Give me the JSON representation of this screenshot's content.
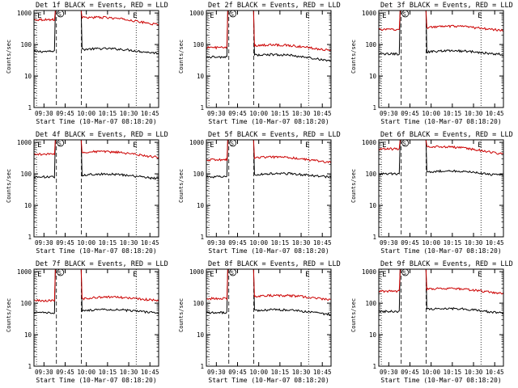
{
  "title_suffix": "BLACK = Events, RED = LLD",
  "xlabel": "Start Time (10-Mar-07 08:18:20)",
  "ylabel": "Counts/sec",
  "y_ticks": [
    "1",
    "10",
    "100",
    "1000"
  ],
  "marker_e": "E",
  "marker_s": "S",
  "colors": {
    "events": "#000000",
    "lld": "#cc0000"
  },
  "chart_data": [
    {
      "type": "line",
      "title": "Det 1f",
      "x_ticks": [
        "09:30",
        "09:45",
        "10:00",
        "10:15",
        "10:30",
        "10:45"
      ],
      "ylim": [
        1,
        1200
      ],
      "series": [
        {
          "name": "Events",
          "start": 60,
          "end": 60
        },
        {
          "name": "LLD",
          "start": 620,
          "end": 480
        }
      ]
    },
    {
      "type": "line",
      "title": "Det 2f",
      "x_ticks": [
        "09:30",
        "09:45",
        "10:00",
        "10:15",
        "10:30",
        "10:45"
      ],
      "ylim": [
        1,
        1200
      ],
      "series": [
        {
          "name": "Events",
          "start": 40,
          "end": 35
        },
        {
          "name": "LLD",
          "start": 80,
          "end": 75
        }
      ]
    },
    {
      "type": "line",
      "title": "Det 3f",
      "x_ticks": [
        "09:30",
        "09:45",
        "10:00",
        "10:15",
        "10:30",
        "10:45"
      ],
      "ylim": [
        1,
        1200
      ],
      "series": [
        {
          "name": "Events",
          "start": 50,
          "end": 55
        },
        {
          "name": "LLD",
          "start": 300,
          "end": 320
        }
      ]
    },
    {
      "type": "line",
      "title": "Det 4f",
      "x_ticks": [
        "09:30",
        "09:45",
        "10:00",
        "10:15",
        "10:30",
        "10:45"
      ],
      "ylim": [
        1,
        1200
      ],
      "series": [
        {
          "name": "Events",
          "start": 80,
          "end": 80
        },
        {
          "name": "LLD",
          "start": 420,
          "end": 380
        }
      ]
    },
    {
      "type": "line",
      "title": "Det 5f",
      "x_ticks": [
        "09:30",
        "09:45",
        "10:00",
        "10:15",
        "10:30",
        "10:45"
      ],
      "ylim": [
        1,
        1200
      ],
      "series": [
        {
          "name": "Events",
          "start": 80,
          "end": 90
        },
        {
          "name": "LLD",
          "start": 280,
          "end": 260
        }
      ]
    },
    {
      "type": "line",
      "title": "Det 6f",
      "x_ticks": [
        "09:30",
        "09:45",
        "10:00",
        "10:15",
        "10:30",
        "10:45"
      ],
      "ylim": [
        1,
        1200
      ],
      "series": [
        {
          "name": "Events",
          "start": 100,
          "end": 100
        },
        {
          "name": "LLD",
          "start": 620,
          "end": 480
        }
      ]
    },
    {
      "type": "line",
      "title": "Det 7f",
      "x_ticks": [
        "09:30",
        "09:45",
        "10:00",
        "10:15",
        "10:30",
        "10:45"
      ],
      "ylim": [
        1,
        1200
      ],
      "series": [
        {
          "name": "Events",
          "start": 50,
          "end": 55
        },
        {
          "name": "LLD",
          "start": 120,
          "end": 140
        }
      ]
    },
    {
      "type": "line",
      "title": "Det 8f",
      "x_ticks": [
        "09:30",
        "09:45",
        "10:00",
        "10:15",
        "10:30",
        "10:45"
      ],
      "ylim": [
        1,
        1200
      ],
      "series": [
        {
          "name": "Events",
          "start": 50,
          "end": 50
        },
        {
          "name": "LLD",
          "start": 140,
          "end": 150
        }
      ]
    },
    {
      "type": "line",
      "title": "Det 9f",
      "x_ticks": [
        "09:30",
        "09:45",
        "10:00",
        "10:15",
        "10:30",
        "10:45"
      ],
      "ylim": [
        1,
        1200
      ],
      "series": [
        {
          "name": "Events",
          "start": 55,
          "end": 55
        },
        {
          "name": "LLD",
          "start": 240,
          "end": 230
        }
      ]
    }
  ]
}
